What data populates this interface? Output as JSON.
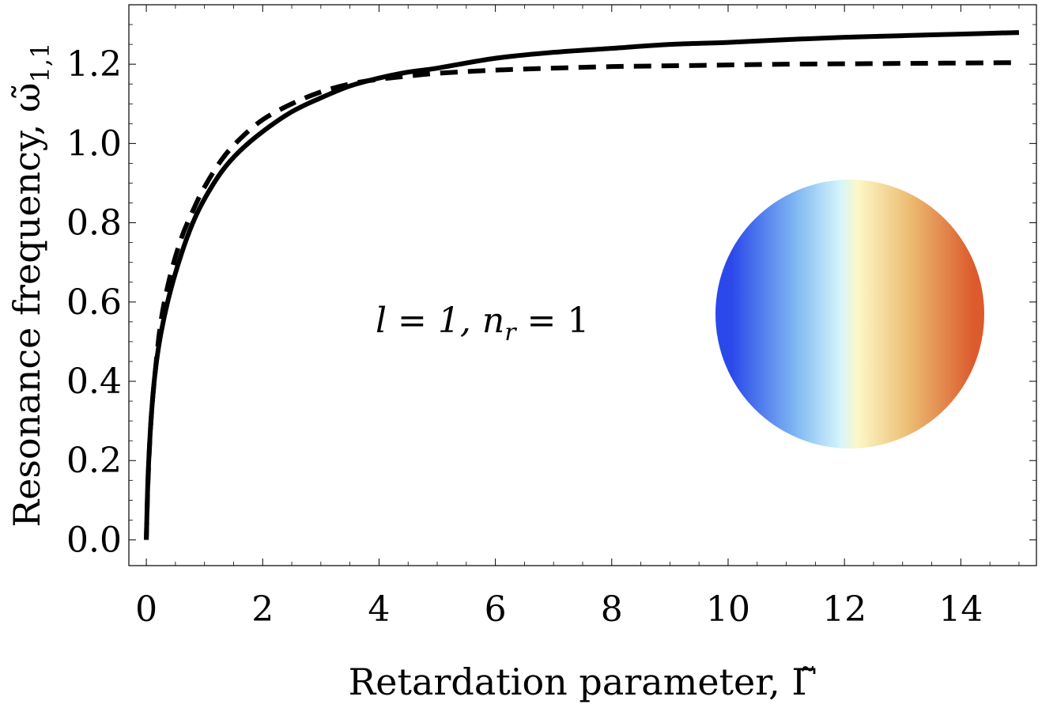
{
  "chart_data": {
    "type": "line",
    "xlabel": "Retardation parameter, Γ̃",
    "ylabel": "Resonance frequency, ω̃",
    "ylabel_subscript": "1,1",
    "xlim": [
      -0.3,
      15.3
    ],
    "ylim": [
      -0.065,
      1.35
    ],
    "x_ticks": [
      0,
      2,
      4,
      6,
      8,
      10,
      12,
      14
    ],
    "x_tick_labels": [
      "0",
      "2",
      "4",
      "6",
      "8",
      "10",
      "12",
      "14"
    ],
    "y_ticks": [
      0.0,
      0.2,
      0.4,
      0.6,
      0.8,
      1.0,
      1.2
    ],
    "y_tick_labels": [
      "0.0",
      "0.2",
      "0.4",
      "0.6",
      "0.8",
      "1.0",
      "1.2"
    ],
    "grid": false,
    "annotation": {
      "text": "l = 1, n",
      "subscript": "r",
      "suffix": " = 1"
    },
    "inset": {
      "type": "mode-pattern-disc",
      "gradient_colors": [
        "#2b49ea",
        "#7fb8f2",
        "#d8f6fb",
        "#fdf7c6",
        "#ecbd73",
        "#dc5a2c"
      ]
    },
    "series": [
      {
        "style": "solid",
        "color": "#000000",
        "x": [
          0,
          0.03,
          0.08,
          0.15,
          0.25,
          0.4,
          0.6,
          0.8,
          1.0,
          1.3,
          1.6,
          2.0,
          2.5,
          3.0,
          3.5,
          4.0,
          4.5,
          5.0,
          6.0,
          7.0,
          8.0,
          9.0,
          10.0,
          11.0,
          12.0,
          13.0,
          14.0,
          15.0
        ],
        "y": [
          0.0,
          0.16,
          0.3,
          0.42,
          0.52,
          0.62,
          0.72,
          0.8,
          0.86,
          0.93,
          0.98,
          1.03,
          1.08,
          1.115,
          1.145,
          1.165,
          1.18,
          1.19,
          1.215,
          1.23,
          1.24,
          1.25,
          1.255,
          1.262,
          1.268,
          1.272,
          1.276,
          1.28
        ]
      },
      {
        "style": "dashed",
        "color": "#000000",
        "x": [
          0,
          0.03,
          0.08,
          0.15,
          0.25,
          0.4,
          0.6,
          0.8,
          1.0,
          1.3,
          1.6,
          2.0,
          2.5,
          3.0,
          3.5,
          4.0,
          4.5,
          5.0,
          6.0,
          7.0,
          8.0,
          9.0,
          10.0,
          11.0,
          12.0,
          13.0,
          14.0,
          15.0
        ],
        "y": [
          0.0,
          0.15,
          0.3,
          0.42,
          0.55,
          0.66,
          0.76,
          0.83,
          0.89,
          0.96,
          1.01,
          1.06,
          1.1,
          1.13,
          1.15,
          1.162,
          1.17,
          1.177,
          1.185,
          1.19,
          1.194,
          1.196,
          1.198,
          1.2,
          1.201,
          1.202,
          1.203,
          1.204
        ]
      }
    ]
  }
}
